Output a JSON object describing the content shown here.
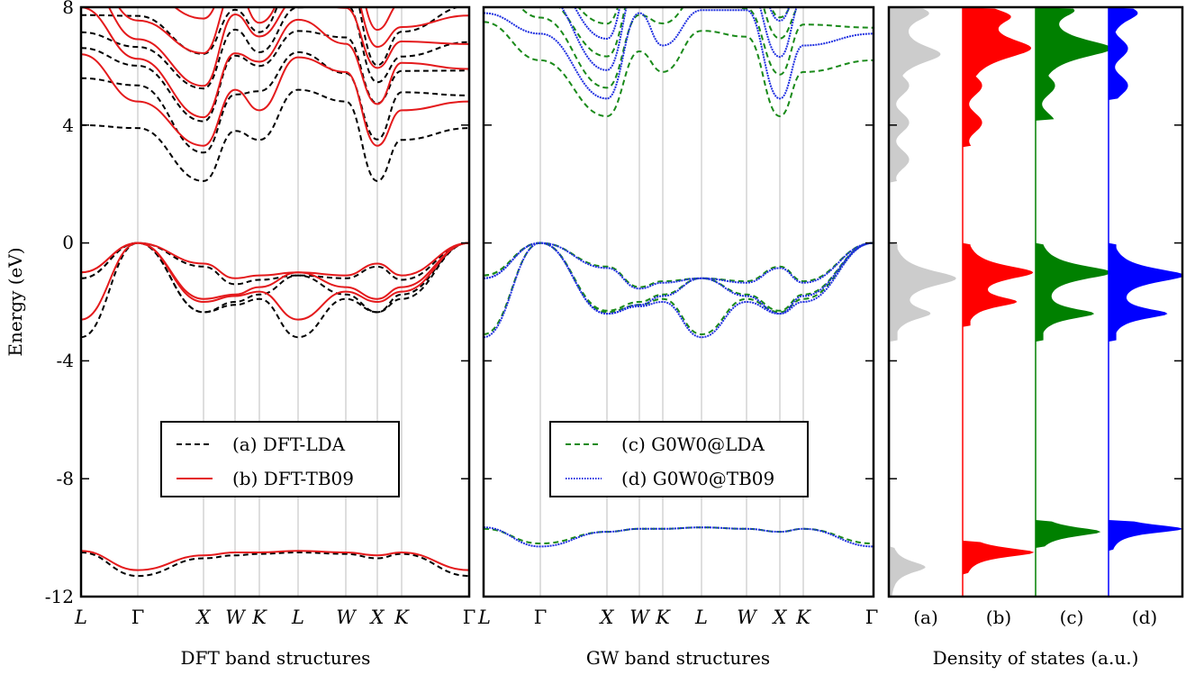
{
  "chart_data": [
    {
      "type": "line",
      "xlabel": "DFT band structures",
      "ylabel": "Energy (eV)",
      "ylim": [
        -12,
        8
      ],
      "yticks": [
        "8",
        "4",
        "0",
        "-4",
        "-8",
        "-12"
      ],
      "kpoints": [
        "L",
        "Γ",
        "X",
        "W",
        "K",
        "L",
        "W",
        "X",
        "K",
        "Γ"
      ],
      "grid": "vertical lines at high-symmetry k-points",
      "legend": {
        "placement": "lower-center",
        "entries": [
          "(a) DFT-LDA",
          "(b) DFT-TB09"
        ]
      },
      "series": [
        {
          "name": "(a) DFT-LDA",
          "style": "dashed",
          "color": "#000000",
          "core_band": [
            -10.5,
            -11.3,
            -10.7,
            -10.6,
            -10.55,
            -10.5,
            -10.55,
            -10.7,
            -10.55,
            -11.3
          ],
          "valence_bands": [
            [
              -3.2,
              0.0,
              -2.35,
              -2.1,
              -1.9,
              -3.2,
              -1.9,
              -2.35,
              -1.9,
              0.0
            ],
            [
              -1.2,
              0.0,
              -2.35,
              -2.0,
              -1.75,
              -1.1,
              -1.75,
              -2.35,
              -1.75,
              0.0
            ],
            [
              -1.2,
              0.0,
              -0.8,
              -1.4,
              -1.25,
              -1.1,
              -1.2,
              -0.8,
              -1.25,
              0.0
            ]
          ],
          "conduction_min": [
            4.0,
            3.9,
            2.1,
            3.8,
            3.5,
            5.2,
            4.8,
            2.1,
            3.5,
            3.9
          ]
        },
        {
          "name": "(b) DFT-TB09",
          "style": "solid",
          "color": "#e41a1c",
          "core_band": [
            -10.45,
            -11.1,
            -10.6,
            -10.5,
            -10.5,
            -10.45,
            -10.5,
            -10.6,
            -10.5,
            -11.1
          ],
          "valence_bands": [
            [
              -2.6,
              0.0,
              -2.0,
              -1.8,
              -1.65,
              -2.6,
              -1.65,
              -2.0,
              -1.65,
              0.0
            ],
            [
              -1.0,
              0.0,
              -1.9,
              -1.75,
              -1.5,
              -1.0,
              -1.5,
              -1.9,
              -1.5,
              0.0
            ],
            [
              -1.0,
              0.0,
              -0.7,
              -1.2,
              -1.1,
              -1.0,
              -1.1,
              -0.7,
              -1.1,
              0.0
            ]
          ],
          "conduction_min": [
            6.4,
            4.8,
            3.3,
            5.2,
            4.5,
            6.3,
            5.8,
            3.3,
            4.5,
            4.8
          ]
        }
      ]
    },
    {
      "type": "line",
      "xlabel": "GW band structures",
      "ylim": [
        -12,
        8
      ],
      "kpoints": [
        "L",
        "Γ",
        "X",
        "W",
        "K",
        "L",
        "W",
        "X",
        "K",
        "Γ"
      ],
      "grid": "vertical lines at high-symmetry k-points",
      "legend": {
        "placement": "lower-center",
        "entries": [
          "(c) G0W0@LDA",
          "(d) G0W0@TB09"
        ]
      },
      "series": [
        {
          "name": "(c) G0W0@LDA",
          "style": "dashed",
          "color": "#1a8a1a",
          "core_band": [
            -9.7,
            -10.2,
            -9.8,
            -9.7,
            -9.7,
            -9.65,
            -9.7,
            -9.8,
            -9.7,
            -10.2
          ],
          "valence_bands": [
            [
              -3.1,
              0.0,
              -2.35,
              -2.1,
              -1.9,
              -3.1,
              -1.9,
              -2.35,
              -1.9,
              0.0
            ],
            [
              -1.1,
              0.0,
              -2.3,
              -2.0,
              -1.75,
              -1.2,
              -1.75,
              -2.3,
              -1.75,
              0.0
            ],
            [
              -1.1,
              0.0,
              -0.8,
              -1.5,
              -1.3,
              -1.2,
              -1.3,
              -0.8,
              -1.3,
              0.0
            ]
          ],
          "conduction_min": [
            7.5,
            6.2,
            4.3,
            6.5,
            5.8,
            7.2,
            7.0,
            4.3,
            5.8,
            6.2
          ]
        },
        {
          "name": "(d) G0W0@TB09",
          "style": "dotted-solid",
          "color": "#1f2fe0",
          "core_band": [
            -9.65,
            -10.3,
            -9.8,
            -9.7,
            -9.7,
            -9.65,
            -9.7,
            -9.8,
            -9.7,
            -10.3
          ],
          "valence_bands": [
            [
              -3.2,
              0.0,
              -2.4,
              -2.15,
              -2.0,
              -3.2,
              -2.0,
              -2.4,
              -2.0,
              0.0
            ],
            [
              -1.2,
              0.0,
              -2.4,
              -2.1,
              -1.8,
              -1.2,
              -1.8,
              -2.4,
              -1.8,
              0.0
            ],
            [
              -1.2,
              0.0,
              -0.85,
              -1.55,
              -1.35,
              -1.2,
              -1.35,
              -0.85,
              -1.35,
              0.0
            ]
          ],
          "conduction_min": [
            7.8,
            7.1,
            4.9,
            7.8,
            6.7,
            7.9,
            7.9,
            4.9,
            6.7,
            7.1
          ]
        }
      ]
    },
    {
      "type": "area",
      "xlabel": "Density of states (a.u.)",
      "ylim": [
        -12,
        8
      ],
      "columns": [
        "(a)",
        "(b)",
        "(c)",
        "(d)"
      ],
      "series": [
        {
          "name": "(a)",
          "color": "#cccccc",
          "peaks": [
            {
              "e": -11.0,
              "h": 0.55,
              "w": 0.25
            },
            {
              "e": -1.2,
              "h": 1.0,
              "w": 0.35
            },
            {
              "e": -2.4,
              "h": 0.55,
              "w": 0.25
            },
            {
              "e": 6.4,
              "h": 0.75,
              "w": 0.4
            },
            {
              "e": 7.8,
              "h": 0.55,
              "w": 0.35
            }
          ],
          "band_edges": {
            "core": [
              -12,
              -10.3
            ],
            "valence": [
              -3.3,
              0.0
            ],
            "conduction": [
              2.1,
              8
            ]
          }
        },
        {
          "name": "(b)",
          "color": "#ff0000",
          "peaks": [
            {
              "e": -10.5,
              "h": 1.1,
              "w": 0.2
            },
            {
              "e": -1.0,
              "h": 1.05,
              "w": 0.3
            },
            {
              "e": -2.0,
              "h": 0.75,
              "w": 0.22
            },
            {
              "e": 6.6,
              "h": 1.0,
              "w": 0.45
            },
            {
              "e": 7.7,
              "h": 0.6,
              "w": 0.35
            }
          ],
          "band_edges": {
            "core": [
              -11.2,
              -10.1
            ],
            "valence": [
              -2.8,
              0.0
            ],
            "conduction": [
              3.3,
              8
            ]
          }
        },
        {
          "name": "(c)",
          "color": "#008000",
          "peaks": [
            {
              "e": -9.8,
              "h": 1.0,
              "w": 0.2
            },
            {
              "e": -1.0,
              "h": 1.15,
              "w": 0.3
            },
            {
              "e": -2.4,
              "h": 0.85,
              "w": 0.22
            },
            {
              "e": 6.6,
              "h": 1.15,
              "w": 0.4
            },
            {
              "e": 7.9,
              "h": 0.5,
              "w": 0.3
            }
          ],
          "band_edges": {
            "core": [
              -10.3,
              -9.4
            ],
            "valence": [
              -3.3,
              0.0
            ],
            "conduction": [
              4.2,
              8
            ]
          }
        },
        {
          "name": "(d)",
          "color": "#0000ff",
          "peaks": [
            {
              "e": -9.7,
              "h": 1.15,
              "w": 0.18
            },
            {
              "e": -1.1,
              "h": 1.15,
              "w": 0.3
            },
            {
              "e": -2.4,
              "h": 0.85,
              "w": 0.22
            },
            {
              "e": 7.8,
              "h": 0.45,
              "w": 0.35
            }
          ],
          "band_edges": {
            "core": [
              -10.4,
              -9.4
            ],
            "valence": [
              -3.3,
              0.0
            ],
            "conduction": [
              4.9,
              8
            ]
          }
        }
      ]
    }
  ],
  "legend_labels": {
    "a": "(a) DFT-LDA",
    "b": "(b) DFT-TB09",
    "c": "(c) G0W0@LDA",
    "d": "(d) G0W0@TB09"
  },
  "dos_labels": [
    "(a)",
    "(b)",
    "(c)",
    "(d)"
  ],
  "axis_titles": {
    "ylabel": "Energy (eV)",
    "x1": "DFT band structures",
    "x2": "GW band structures",
    "x3": "Density of states (a.u.)"
  },
  "yticks": [
    "8",
    "4",
    "0",
    "-4",
    "-8",
    "-12"
  ]
}
